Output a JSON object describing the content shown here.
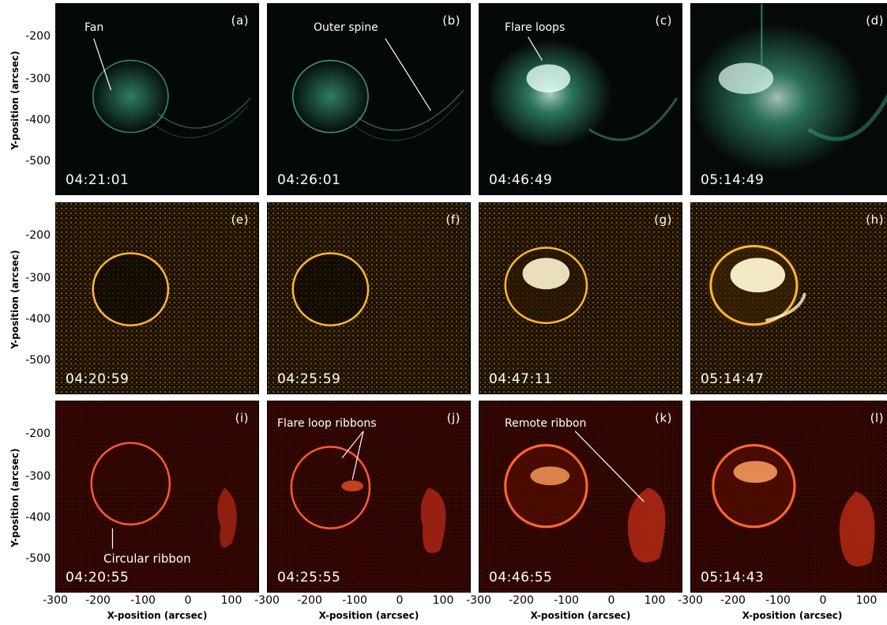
{
  "figure": {
    "y_axis_label": "Y-position (arcsec)",
    "x_axis_label": "X-position (arcsec)",
    "y_ticks": [
      "-200",
      "-300",
      "-400",
      "-500"
    ],
    "x_ticks": [
      "-300",
      "-200",
      "-100",
      "0",
      "100"
    ],
    "row_colors": [
      "#3fae8c",
      "#f0a020",
      "#d0301a"
    ],
    "panels": [
      {
        "id": "a",
        "label": "(a)",
        "time": "04:21:01"
      },
      {
        "id": "b",
        "label": "(b)",
        "time": "04:26:01"
      },
      {
        "id": "c",
        "label": "(c)",
        "time": "04:46:49"
      },
      {
        "id": "d",
        "label": "(d)",
        "time": "05:14:49"
      },
      {
        "id": "e",
        "label": "(e)",
        "time": "04:20:59"
      },
      {
        "id": "f",
        "label": "(f)",
        "time": "04:25:59"
      },
      {
        "id": "g",
        "label": "(g)",
        "time": "04:47:11"
      },
      {
        "id": "h",
        "label": "(h)",
        "time": "05:14:47"
      },
      {
        "id": "i",
        "label": "(i)",
        "time": "04:20:55"
      },
      {
        "id": "j",
        "label": "(j)",
        "time": "04:25:55"
      },
      {
        "id": "k",
        "label": "(k)",
        "time": "04:46:55"
      },
      {
        "id": "l",
        "label": "(l)",
        "time": "05:14:43"
      }
    ],
    "annotations": {
      "fan": "Fan",
      "outer_spine": "Outer spine",
      "flare_loops": "Flare loops",
      "flare_loop_ribbons": "Flare loop ribbons",
      "remote_ribbon": "Remote ribbon",
      "circular_ribbon": "Circular ribbon"
    }
  }
}
